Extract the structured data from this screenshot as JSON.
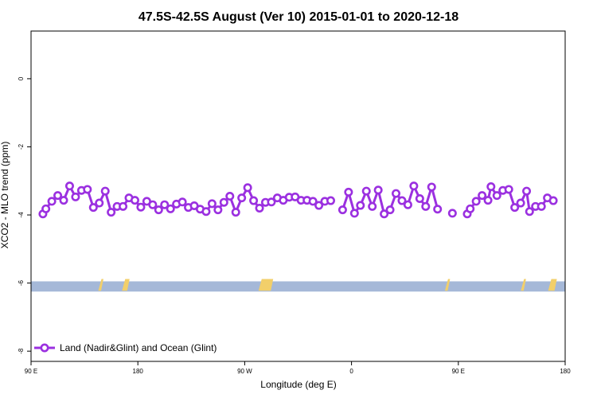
{
  "chart_data": {
    "type": "line",
    "title": "47.5S-42.5S August (Ver 10)   2015-01-01 to 2020-12-18",
    "xlabel": "Longitude (deg E)",
    "ylabel": "XCO2 - MLO trend (ppm)",
    "xlim": [
      90,
      540
    ],
    "ylim": [
      -8.3,
      1.4
    ],
    "x_ticks": [
      {
        "value": 90,
        "label": "90 E"
      },
      {
        "value": 180,
        "label": "180"
      },
      {
        "value": 270,
        "label": "90 W"
      },
      {
        "value": 360,
        "label": "0"
      },
      {
        "value": 450,
        "label": "90 E"
      },
      {
        "value": 540,
        "label": "180"
      }
    ],
    "y_ticks": [
      {
        "value": 0,
        "label": "0"
      },
      {
        "value": -2,
        "label": "-2"
      },
      {
        "value": -4,
        "label": "-4"
      },
      {
        "value": -6,
        "label": "-6"
      },
      {
        "value": -8,
        "label": "-8"
      }
    ],
    "series": [
      {
        "name": "Land (Nadir&Glint) and Ocean (Glint)",
        "color": "#9b30e0",
        "segments": [
          [
            [
              100,
              -3.97
            ],
            [
              102.5,
              -3.82
            ],
            [
              107.5,
              -3.6
            ],
            [
              112.5,
              -3.43
            ],
            [
              117.5,
              -3.57
            ],
            [
              122.5,
              -3.15
            ],
            [
              127.5,
              -3.47
            ],
            [
              132.5,
              -3.28
            ],
            [
              137.5,
              -3.25
            ],
            [
              142.5,
              -3.78
            ],
            [
              147.5,
              -3.65
            ],
            [
              152.5,
              -3.3
            ],
            [
              157.5,
              -3.92
            ],
            [
              162.5,
              -3.75
            ],
            [
              167.5,
              -3.75
            ],
            [
              172.5,
              -3.5
            ],
            [
              177.5,
              -3.57
            ],
            [
              182.5,
              -3.77
            ],
            [
              187.5,
              -3.6
            ],
            [
              192.5,
              -3.7
            ],
            [
              197.5,
              -3.85
            ],
            [
              202.5,
              -3.7
            ],
            [
              207.5,
              -3.82
            ],
            [
              212.5,
              -3.68
            ],
            [
              217.5,
              -3.62
            ],
            [
              222.5,
              -3.78
            ],
            [
              227.5,
              -3.73
            ],
            [
              232.5,
              -3.83
            ],
            [
              237.5,
              -3.9
            ],
            [
              242.5,
              -3.67
            ],
            [
              247.5,
              -3.85
            ],
            [
              252.5,
              -3.63
            ],
            [
              257.5,
              -3.45
            ],
            [
              262.5,
              -3.92
            ],
            [
              267.5,
              -3.5
            ],
            [
              272.5,
              -3.2
            ],
            [
              277.5,
              -3.58
            ],
            [
              282.5,
              -3.8
            ],
            [
              287.5,
              -3.63
            ],
            [
              292.5,
              -3.62
            ],
            [
              297.5,
              -3.5
            ],
            [
              302.5,
              -3.57
            ],
            [
              307.5,
              -3.48
            ],
            [
              312.5,
              -3.47
            ],
            [
              317.5,
              -3.57
            ],
            [
              322.5,
              -3.57
            ],
            [
              327.5,
              -3.6
            ],
            [
              332.5,
              -3.72
            ],
            [
              337.5,
              -3.6
            ],
            [
              342.5,
              -3.58
            ]
          ],
          [
            [
              352.5,
              -3.85
            ],
            [
              357.5,
              -3.33
            ],
            [
              362.5,
              -3.95
            ],
            [
              367.5,
              -3.72
            ],
            [
              372.5,
              -3.3
            ],
            [
              377.5,
              -3.75
            ],
            [
              382.5,
              -3.27
            ],
            [
              387.5,
              -3.97
            ],
            [
              392.5,
              -3.85
            ],
            [
              397.5,
              -3.37
            ],
            [
              402.5,
              -3.58
            ],
            [
              407.5,
              -3.7
            ],
            [
              412.5,
              -3.15
            ],
            [
              417.5,
              -3.52
            ],
            [
              422.5,
              -3.75
            ],
            [
              427.5,
              -3.18
            ],
            [
              432.5,
              -3.83
            ]
          ],
          [
            [
              445,
              -3.95
            ]
          ],
          [
            [
              457.5,
              -3.97
            ],
            [
              460,
              -3.82
            ],
            [
              465,
              -3.6
            ],
            [
              470,
              -3.43
            ],
            [
              475,
              -3.57
            ],
            [
              477.5,
              -3.17
            ],
            [
              482.5,
              -3.43
            ],
            [
              487.5,
              -3.28
            ],
            [
              492.5,
              -3.25
            ],
            [
              497.5,
              -3.78
            ],
            [
              502.5,
              -3.65
            ],
            [
              507.5,
              -3.3
            ],
            [
              510,
              -3.9
            ],
            [
              515,
              -3.75
            ],
            [
              520,
              -3.75
            ],
            [
              525,
              -3.5
            ],
            [
              530,
              -3.58
            ]
          ]
        ]
      }
    ],
    "band": {
      "y_from": -6.25,
      "y_to": -5.95,
      "color": "#a5b8d8"
    },
    "highlights": {
      "color": "#f2cf6a",
      "marks": [
        [
          148,
          149
        ],
        [
          168,
          171
        ],
        [
          283,
          292
        ],
        [
          440,
          441
        ],
        [
          504,
          505
        ],
        [
          527,
          531
        ]
      ]
    },
    "legend": {
      "position": "bottom-left",
      "label": "Land (Nadir&Glint) and Ocean (Glint)"
    },
    "grid": false
  }
}
